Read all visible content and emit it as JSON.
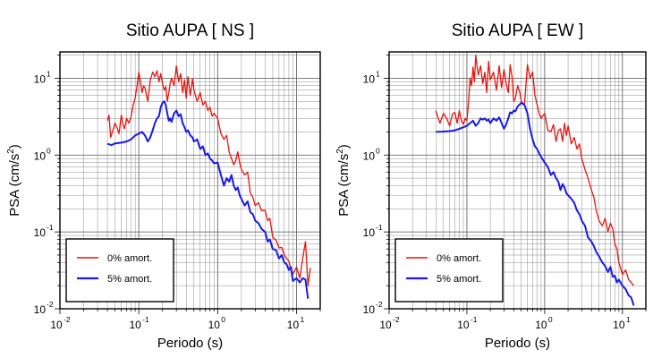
{
  "chart_data": [
    {
      "type": "line",
      "title": "Sitio AUPA [ NS ]",
      "xlabel": "Periodo (s)",
      "ylabel_main": "PSA (cm/s",
      "ylabel_sup": "2",
      "ylabel_end": ")",
      "x_scale": "log",
      "y_scale": "log",
      "xlim": [
        0.01,
        20
      ],
      "ylim": [
        0.01,
        22
      ],
      "grid": true,
      "legend_position": "bottom-left",
      "x_ticks": [
        {
          "value": 0.01,
          "base": "10",
          "exp": "-2"
        },
        {
          "value": 0.1,
          "base": "10",
          "exp": "-1"
        },
        {
          "value": 1,
          "base": "10",
          "exp": "0"
        },
        {
          "value": 10,
          "base": "10",
          "exp": "1"
        }
      ],
      "y_ticks": [
        {
          "value": 0.01,
          "base": "10",
          "exp": "-2"
        },
        {
          "value": 0.1,
          "base": "10",
          "exp": "-1"
        },
        {
          "value": 1,
          "base": "10",
          "exp": "0"
        },
        {
          "value": 10,
          "base": "10",
          "exp": "1"
        }
      ],
      "series": [
        {
          "name": "0% amort.",
          "color": "#e8140f",
          "x": [
            0.04,
            0.042,
            0.044,
            0.047,
            0.05,
            0.053,
            0.056,
            0.06,
            0.063,
            0.066,
            0.07,
            0.075,
            0.08,
            0.085,
            0.09,
            0.095,
            0.1,
            0.105,
            0.11,
            0.115,
            0.12,
            0.13,
            0.14,
            0.15,
            0.16,
            0.17,
            0.18,
            0.19,
            0.2,
            0.21,
            0.22,
            0.23,
            0.24,
            0.25,
            0.26,
            0.28,
            0.3,
            0.32,
            0.34,
            0.36,
            0.38,
            0.4,
            0.42,
            0.45,
            0.48,
            0.5,
            0.55,
            0.6,
            0.65,
            0.7,
            0.75,
            0.8,
            0.85,
            0.9,
            1.0,
            1.1,
            1.2,
            1.3,
            1.4,
            1.5,
            1.6,
            1.7,
            1.8,
            1.9,
            2.0,
            2.2,
            2.4,
            2.6,
            2.8,
            3.0,
            3.3,
            3.6,
            4.0,
            4.3,
            4.6,
            5.0,
            5.5,
            6.0,
            6.5,
            7.0,
            7.5,
            8.0,
            8.5,
            9.0,
            10,
            11,
            12,
            13,
            14,
            15
          ],
          "y": [
            2.8,
            3.3,
            1.7,
            2.1,
            2.6,
            2.3,
            1.9,
            3.3,
            2.5,
            2.2,
            3.0,
            2.6,
            3.2,
            4.5,
            5.5,
            8.0,
            12.0,
            9.0,
            6.5,
            8.0,
            7.5,
            5.0,
            9.5,
            12.0,
            10.5,
            12.5,
            9.0,
            11.5,
            8.5,
            7.0,
            7.8,
            5.0,
            6.5,
            8.5,
            10.0,
            8.0,
            14.5,
            9.0,
            11.5,
            6.5,
            9.5,
            5.5,
            10.5,
            6.0,
            9.8,
            7.0,
            5.0,
            6.5,
            4.5,
            5.0,
            3.8,
            4.2,
            3.2,
            3.5,
            3.0,
            1.9,
            1.6,
            1.8,
            1.1,
            0.9,
            0.75,
            0.85,
            1.1,
            0.8,
            0.65,
            0.55,
            0.6,
            0.32,
            0.28,
            0.22,
            0.24,
            0.19,
            0.19,
            0.14,
            0.15,
            0.085,
            0.078,
            0.062,
            0.063,
            0.05,
            0.045,
            0.042,
            0.032,
            0.028,
            0.035,
            0.025,
            0.045,
            0.075,
            0.02,
            0.034
          ]
        },
        {
          "name": "5% amort.",
          "color": "#1a1aea",
          "x": [
            0.04,
            0.045,
            0.05,
            0.06,
            0.07,
            0.08,
            0.09,
            0.1,
            0.11,
            0.12,
            0.13,
            0.14,
            0.15,
            0.16,
            0.17,
            0.18,
            0.19,
            0.2,
            0.21,
            0.22,
            0.23,
            0.24,
            0.25,
            0.26,
            0.28,
            0.3,
            0.32,
            0.34,
            0.36,
            0.38,
            0.4,
            0.42,
            0.45,
            0.48,
            0.5,
            0.55,
            0.6,
            0.65,
            0.7,
            0.75,
            0.8,
            0.85,
            0.9,
            1.0,
            1.1,
            1.2,
            1.3,
            1.4,
            1.5,
            1.6,
            1.7,
            1.8,
            1.9,
            2.0,
            2.2,
            2.4,
            2.6,
            2.8,
            3.0,
            3.3,
            3.6,
            4.0,
            4.3,
            4.6,
            5.0,
            5.5,
            6.0,
            6.5,
            7.0,
            7.5,
            8.0,
            8.5,
            9.0,
            10,
            11,
            12,
            13,
            14
          ],
          "y": [
            1.4,
            1.35,
            1.42,
            1.45,
            1.5,
            1.6,
            1.8,
            1.9,
            2.0,
            1.8,
            1.5,
            1.7,
            2.1,
            2.6,
            3.0,
            3.2,
            4.2,
            4.8,
            5.0,
            4.5,
            3.5,
            2.8,
            3.0,
            2.7,
            3.5,
            3.8,
            3.2,
            3.4,
            2.6,
            2.3,
            2.0,
            2.1,
            1.8,
            1.7,
            1.5,
            1.6,
            1.2,
            1.3,
            1.0,
            1.05,
            0.9,
            0.85,
            0.78,
            0.8,
            0.55,
            0.4,
            0.5,
            0.45,
            0.55,
            0.4,
            0.35,
            0.38,
            0.3,
            0.27,
            0.22,
            0.25,
            0.18,
            0.17,
            0.14,
            0.13,
            0.11,
            0.1,
            0.075,
            0.08,
            0.06,
            0.058,
            0.045,
            0.05,
            0.04,
            0.038,
            0.032,
            0.035,
            0.023,
            0.025,
            0.022,
            0.025,
            0.024,
            0.0135
          ]
        }
      ]
    },
    {
      "type": "line",
      "title": "Sitio AUPA [ EW ]",
      "xlabel": "Periodo (s)",
      "ylabel_main": "PSA (cm/s",
      "ylabel_sup": "2",
      "ylabel_end": ")",
      "x_scale": "log",
      "y_scale": "log",
      "xlim": [
        0.01,
        20
      ],
      "ylim": [
        0.01,
        22
      ],
      "grid": true,
      "legend_position": "bottom-left",
      "x_ticks": [
        {
          "value": 0.01,
          "base": "10",
          "exp": "-2"
        },
        {
          "value": 0.1,
          "base": "10",
          "exp": "-1"
        },
        {
          "value": 1,
          "base": "10",
          "exp": "0"
        },
        {
          "value": 10,
          "base": "10",
          "exp": "1"
        }
      ],
      "y_ticks": [
        {
          "value": 0.01,
          "base": "10",
          "exp": "-2"
        },
        {
          "value": 0.1,
          "base": "10",
          "exp": "-1"
        },
        {
          "value": 1,
          "base": "10",
          "exp": "0"
        },
        {
          "value": 10,
          "base": "10",
          "exp": "1"
        }
      ],
      "series": [
        {
          "name": "0% amort.",
          "color": "#e8140f",
          "x": [
            0.04,
            0.042,
            0.045,
            0.05,
            0.055,
            0.06,
            0.065,
            0.07,
            0.075,
            0.08,
            0.085,
            0.09,
            0.095,
            0.1,
            0.105,
            0.11,
            0.115,
            0.12,
            0.125,
            0.13,
            0.14,
            0.15,
            0.16,
            0.17,
            0.18,
            0.19,
            0.2,
            0.22,
            0.24,
            0.26,
            0.28,
            0.3,
            0.32,
            0.34,
            0.36,
            0.38,
            0.4,
            0.42,
            0.45,
            0.48,
            0.5,
            0.55,
            0.6,
            0.65,
            0.7,
            0.75,
            0.8,
            0.85,
            0.9,
            1.0,
            1.1,
            1.2,
            1.3,
            1.4,
            1.5,
            1.6,
            1.7,
            1.8,
            1.9,
            2.0,
            2.2,
            2.4,
            2.6,
            2.8,
            3.0,
            3.3,
            3.6,
            4.0,
            4.3,
            4.6,
            5.0,
            5.5,
            6.0,
            6.5,
            7.0,
            7.5,
            8.0,
            8.5,
            9.0,
            10,
            11,
            12,
            13,
            14
          ],
          "y": [
            3.8,
            3.2,
            2.6,
            3.5,
            3.0,
            2.4,
            3.4,
            3.6,
            2.6,
            3.8,
            2.8,
            2.5,
            3.0,
            2.8,
            4.8,
            10.0,
            8.0,
            14.0,
            9.0,
            20.0,
            11.0,
            14.5,
            8.5,
            12.0,
            6.5,
            16.5,
            9.5,
            12.0,
            7.0,
            14.5,
            7.5,
            13.0,
            8.5,
            6.5,
            15.0,
            10.5,
            5.0,
            5.5,
            8.0,
            6.5,
            5.0,
            4.5,
            15.0,
            10.0,
            12.0,
            6.0,
            4.5,
            3.5,
            3.0,
            3.5,
            2.1,
            2.0,
            2.5,
            1.5,
            2.1,
            2.2,
            1.5,
            2.6,
            1.8,
            2.4,
            1.4,
            1.7,
            1.2,
            1.4,
            0.9,
            0.65,
            0.5,
            0.35,
            0.28,
            0.19,
            0.14,
            0.12,
            0.15,
            0.1,
            0.13,
            0.11,
            0.07,
            0.06,
            0.04,
            0.028,
            0.032,
            0.024,
            0.022,
            0.02
          ]
        },
        {
          "name": "5% amort.",
          "color": "#1a1aea",
          "x": [
            0.04,
            0.05,
            0.06,
            0.07,
            0.08,
            0.09,
            0.1,
            0.11,
            0.12,
            0.13,
            0.14,
            0.15,
            0.16,
            0.17,
            0.18,
            0.19,
            0.2,
            0.22,
            0.24,
            0.26,
            0.28,
            0.3,
            0.32,
            0.34,
            0.36,
            0.38,
            0.4,
            0.42,
            0.45,
            0.48,
            0.5,
            0.55,
            0.6,
            0.65,
            0.7,
            0.75,
            0.8,
            0.85,
            0.9,
            1.0,
            1.1,
            1.2,
            1.3,
            1.4,
            1.5,
            1.6,
            1.7,
            1.8,
            1.9,
            2.0,
            2.2,
            2.4,
            2.6,
            2.8,
            3.0,
            3.3,
            3.6,
            4.0,
            4.3,
            4.6,
            5.0,
            5.5,
            6.0,
            6.5,
            7.0,
            7.5,
            8.0,
            8.5,
            9.0,
            10,
            11,
            12,
            13,
            14
          ],
          "y": [
            2.0,
            2.02,
            2.05,
            2.1,
            2.2,
            2.3,
            2.4,
            2.6,
            2.8,
            2.4,
            2.6,
            3.0,
            2.9,
            3.0,
            2.8,
            2.9,
            2.6,
            3.0,
            2.8,
            3.1,
            2.6,
            2.2,
            2.5,
            3.0,
            3.6,
            3.5,
            3.8,
            3.7,
            4.3,
            4.6,
            4.8,
            4.5,
            3.5,
            2.2,
            1.6,
            1.3,
            1.2,
            1.05,
            0.95,
            0.8,
            0.7,
            0.55,
            0.6,
            0.5,
            0.45,
            0.35,
            0.42,
            0.38,
            0.32,
            0.3,
            0.27,
            0.24,
            0.19,
            0.17,
            0.14,
            0.12,
            0.085,
            0.075,
            0.065,
            0.055,
            0.048,
            0.04,
            0.036,
            0.03,
            0.035,
            0.026,
            0.027,
            0.022,
            0.024,
            0.02,
            0.018,
            0.015,
            0.014,
            0.011
          ]
        }
      ]
    }
  ]
}
